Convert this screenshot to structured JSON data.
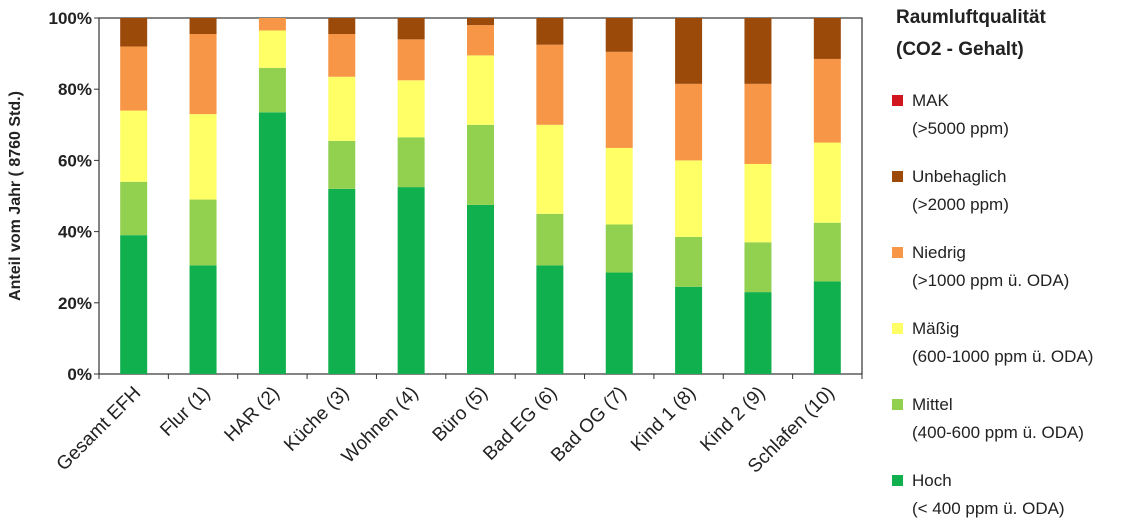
{
  "chart_data": {
    "type": "bar",
    "stacked": true,
    "percent": true,
    "ylabel": "Anteil vom Jahr ( 8760 Std.)",
    "yticks": [
      "0%",
      "20%",
      "40%",
      "60%",
      "80%",
      "100%"
    ],
    "ylim": [
      0,
      100
    ],
    "grid": false,
    "legend_position": "right",
    "legend_title_line1": "Raumluftqualität",
    "legend_title_line2": "(CO2 - Gehalt)",
    "categories": [
      "Gesamt EFH",
      "Flur (1)",
      "HAR (2)",
      "Küche (3)",
      "Wohnen (4)",
      "Büro (5)",
      "Bad EG (6)",
      "Bad OG (7)",
      "Kind 1 (8)",
      "Kind 2 (9)",
      "Schlafen (10)"
    ],
    "series": [
      {
        "name": "Hoch",
        "desc": "(< 400 ppm ü. ODA)",
        "color": "#11b04e",
        "values": [
          39,
          30.5,
          73.5,
          52,
          52.5,
          47.5,
          30.5,
          28.5,
          24.5,
          23,
          26
        ]
      },
      {
        "name": "Mittel",
        "desc": "(400-600 ppm ü. ODA)",
        "color": "#92d050",
        "values": [
          15,
          18.5,
          12.5,
          13.5,
          14,
          22.5,
          14.5,
          13.5,
          14,
          14,
          16.5
        ]
      },
      {
        "name": "Mäßig",
        "desc": "(600-1000 ppm ü. ODA)",
        "color": "#ffff66",
        "values": [
          20,
          24,
          10.5,
          18,
          16,
          19.5,
          25,
          21.5,
          21.5,
          22,
          22.5
        ]
      },
      {
        "name": "Niedrig",
        "desc": "(>1000 ppm ü. ODA)",
        "color": "#f79646",
        "values": [
          18,
          22.5,
          3.5,
          12,
          11.5,
          8.5,
          22.5,
          27,
          21.5,
          22.5,
          23.5
        ]
      },
      {
        "name": "Unbehaglich",
        "desc": "(>2000 ppm)",
        "color": "#9c4a0a",
        "values": [
          8,
          4.5,
          0,
          4.5,
          6,
          2,
          7.5,
          9.5,
          18.5,
          18.5,
          11.5
        ]
      },
      {
        "name": "MAK",
        "desc": "(>5000 ppm)",
        "color": "#d0161e",
        "values": [
          0,
          0,
          0,
          0,
          0,
          0,
          0,
          0,
          0,
          0,
          0
        ]
      }
    ]
  }
}
